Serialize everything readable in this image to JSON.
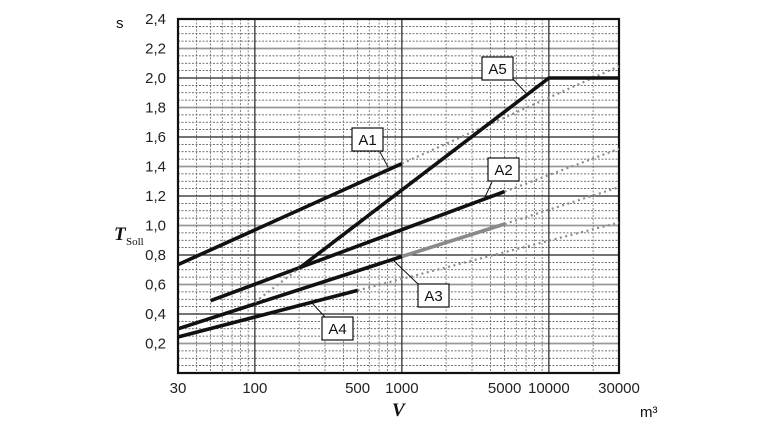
{
  "chart_data": {
    "type": "line",
    "title": "",
    "xlabel": "V",
    "xunit": "m³",
    "ylabel": "T",
    "ylabel_sub": "Soll",
    "yunit": "s",
    "xscale": "log",
    "xlim": [
      30,
      30000
    ],
    "ylim": [
      0,
      2.4
    ],
    "grid": true,
    "xticks": [
      30,
      100,
      500,
      1000,
      5000,
      10000,
      30000
    ],
    "xtick_labels": [
      "30",
      "100",
      "500",
      "1000",
      "5000",
      "10000",
      "30000"
    ],
    "yticks": [
      0.2,
      0.4,
      0.6,
      0.8,
      1.0,
      1.2,
      1.4,
      1.6,
      1.8,
      2.0,
      2.2,
      2.4
    ],
    "ytick_labels": [
      "0,2",
      "0,4",
      "0,6",
      "0,8",
      "1,0",
      "1,2",
      "1,4",
      "1,6",
      "1,8",
      "2,0",
      "2,2",
      "2,4"
    ],
    "series": [
      {
        "name": "A1",
        "solid": [
          [
            30,
            0.735
          ],
          [
            1000,
            1.42
          ]
        ],
        "dotted": [
          [
            1000,
            1.42
          ],
          [
            30000,
            2.08
          ]
        ]
      },
      {
        "name": "A2",
        "solid": [
          [
            50,
            0.49
          ],
          [
            5000,
            1.23
          ]
        ],
        "dotted": [
          [
            5000,
            1.23
          ],
          [
            30000,
            1.52
          ]
        ]
      },
      {
        "name": "A3",
        "solid": [
          [
            30,
            0.3
          ],
          [
            1000,
            0.79
          ]
        ],
        "gray": [
          [
            1000,
            0.79
          ],
          [
            5000,
            1.01
          ]
        ],
        "dotted": [
          [
            5000,
            1.01
          ],
          [
            30000,
            1.26
          ]
        ]
      },
      {
        "name": "A4",
        "solid": [
          [
            30,
            0.244
          ],
          [
            500,
            0.56
          ]
        ],
        "dotted": [
          [
            500,
            0.56
          ],
          [
            30000,
            1.02
          ]
        ]
      },
      {
        "name": "A5",
        "solid": [
          [
            200,
            0.71
          ],
          [
            10000,
            2.0
          ],
          [
            30000,
            2.0
          ]
        ],
        "dotted": [
          [
            100,
            0.48
          ],
          [
            200,
            0.71
          ]
        ]
      }
    ],
    "colors": {
      "line": "#111111",
      "gray_segment": "#8a8a8a",
      "dotted": "#8c8c8c"
    }
  }
}
